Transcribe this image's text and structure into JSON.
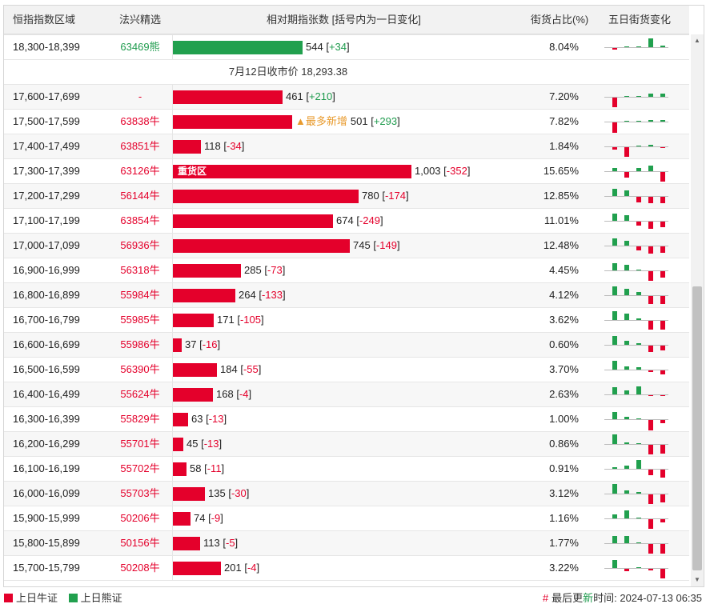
{
  "header": {
    "col_range": "恒指指数区域",
    "col_pick": "法兴精选",
    "col_bar": "相对期指张数 [括号内为一日变化]",
    "col_pct": "街货占比(%)",
    "col_spark": "五日街货变化"
  },
  "colors": {
    "bull": "#e4002b",
    "bear": "#21a04e",
    "accent": "#e89a2c"
  },
  "rows": [
    {
      "range": "18,300-18,399",
      "code": "63469熊",
      "type": "bear",
      "value": "544",
      "change": "+34",
      "pct": "8.04%",
      "spark": [
        -2,
        0,
        1,
        11,
        2
      ]
    },
    {
      "divider": "7月12日收市价 18,293.38"
    },
    {
      "range": "17,600-17,699",
      "code": "-",
      "type": "bull",
      "value": "461",
      "change": "+210",
      "pct": "7.20%",
      "spark": [
        -12,
        0,
        0,
        4,
        4
      ]
    },
    {
      "range": "17,500-17,599",
      "code": "63838牛",
      "type": "bull",
      "value": "501",
      "change": "+293",
      "pct": "7.82%",
      "tag": "▲最多新增",
      "spark": [
        -13,
        0,
        0,
        2,
        2
      ]
    },
    {
      "range": "17,400-17,499",
      "code": "63851牛",
      "type": "bull",
      "value": "118",
      "change": "-34",
      "pct": "1.84%",
      "spark": [
        -3,
        -12,
        1,
        2,
        -1
      ]
    },
    {
      "range": "17,300-17,399",
      "code": "63126牛",
      "type": "bull",
      "value": "1,003",
      "change": "-352",
      "pct": "15.65%",
      "zone": "重货区",
      "spark": [
        4,
        -7,
        4,
        7,
        -12
      ]
    },
    {
      "range": "17,200-17,299",
      "code": "56144牛",
      "type": "bull",
      "value": "780",
      "change": "-174",
      "pct": "12.85%",
      "spark": [
        9,
        7,
        -7,
        -8,
        -8
      ]
    },
    {
      "range": "17,100-17,199",
      "code": "63854牛",
      "type": "bull",
      "value": "674",
      "change": "-249",
      "pct": "11.01%",
      "spark": [
        9,
        7,
        -5,
        -9,
        -7
      ]
    },
    {
      "range": "17,000-17,099",
      "code": "56936牛",
      "type": "bull",
      "value": "745",
      "change": "-149",
      "pct": "12.48%",
      "spark": [
        9,
        6,
        -5,
        -9,
        -8
      ]
    },
    {
      "range": "16,900-16,999",
      "code": "56318牛",
      "type": "bull",
      "value": "285",
      "change": "-73",
      "pct": "4.45%",
      "spark": [
        9,
        7,
        1,
        -12,
        -8
      ]
    },
    {
      "range": "16,800-16,899",
      "code": "55984牛",
      "type": "bull",
      "value": "264",
      "change": "-133",
      "pct": "4.12%",
      "spark": [
        11,
        8,
        4,
        -10,
        -10
      ]
    },
    {
      "range": "16,700-16,799",
      "code": "55985牛",
      "type": "bull",
      "value": "171",
      "change": "-105",
      "pct": "3.62%",
      "spark": [
        11,
        8,
        2,
        -11,
        -11
      ]
    },
    {
      "range": "16,600-16,699",
      "code": "55986牛",
      "type": "bull",
      "value": "37",
      "change": "-16",
      "pct": "0.60%",
      "spark": [
        11,
        5,
        2,
        -8,
        -6
      ]
    },
    {
      "range": "16,500-16,599",
      "code": "56390牛",
      "type": "bull",
      "value": "184",
      "change": "-55",
      "pct": "3.70%",
      "spark": [
        11,
        4,
        3,
        -2,
        -5
      ]
    },
    {
      "range": "16,400-16,499",
      "code": "55624牛",
      "type": "bull",
      "value": "168",
      "change": "-4",
      "pct": "2.63%",
      "spark": [
        9,
        5,
        10,
        -1,
        -1
      ]
    },
    {
      "range": "16,300-16,399",
      "code": "55829牛",
      "type": "bull",
      "value": "63",
      "change": "-13",
      "pct": "1.00%",
      "spark": [
        9,
        3,
        1,
        -13,
        -4
      ]
    },
    {
      "range": "16,200-16,299",
      "code": "55701牛",
      "type": "bull",
      "value": "45",
      "change": "-13",
      "pct": "0.86%",
      "spark": [
        12,
        2,
        1,
        -12,
        -11
      ]
    },
    {
      "range": "16,100-16,199",
      "code": "55702牛",
      "type": "bull",
      "value": "58",
      "change": "-11",
      "pct": "0.91%",
      "spark": [
        2,
        4,
        11,
        -7,
        -10
      ]
    },
    {
      "range": "16,000-16,099",
      "code": "55703牛",
      "type": "bull",
      "value": "135",
      "change": "-30",
      "pct": "3.12%",
      "spark": [
        12,
        4,
        2,
        -12,
        -10
      ]
    },
    {
      "range": "15,900-15,999",
      "code": "50206牛",
      "type": "bull",
      "value": "74",
      "change": "-9",
      "pct": "1.16%",
      "spark": [
        5,
        10,
        1,
        -12,
        -4
      ]
    },
    {
      "range": "15,800-15,899",
      "code": "50156牛",
      "type": "bull",
      "value": "113",
      "change": "-5",
      "pct": "1.77%",
      "spark": [
        9,
        9,
        1,
        -12,
        -12
      ]
    },
    {
      "range": "15,700-15,799",
      "code": "50208牛",
      "type": "bull",
      "value": "201",
      "change": "-4",
      "pct": "3.22%",
      "spark": [
        10,
        -3,
        1,
        -2,
        -12
      ]
    }
  ],
  "legend": {
    "bull_label": "上日牛证",
    "bear_label": "上日熊证"
  },
  "footer": {
    "hash": "#",
    "prefix": "最后更",
    "new_char": "新",
    "suffix": "时间: 2024-07-13 06:35"
  }
}
